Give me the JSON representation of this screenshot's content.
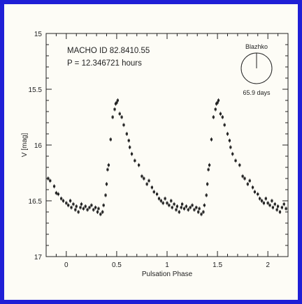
{
  "colors": {
    "border": "#1f1fd6",
    "background": "#fdfcf6",
    "ink": "#222222"
  },
  "chart_data": {
    "type": "scatter",
    "xlabel": "Pulsation Phase",
    "ylabel": "V [mag]",
    "xlim": [
      -0.2,
      2.2
    ],
    "ylim": [
      17,
      15
    ],
    "y_inverted": true,
    "x_ticks": [
      "0",
      "0.5",
      "1",
      "1.5",
      "2"
    ],
    "x_tick_values": [
      0,
      0.5,
      1,
      1.5,
      2
    ],
    "y_ticks": [
      "15",
      "15.5",
      "16",
      "16.5",
      "17"
    ],
    "y_tick_values": [
      15,
      15.5,
      16,
      16.5,
      17
    ],
    "annotations": {
      "line1": "MACHO ID 82.8410.55",
      "line2": "P = 12.346721 hours",
      "inset_title": "Blazhko",
      "inset_caption": "65.9 days"
    },
    "grid": false,
    "series": [
      {
        "points": [
          [
            -0.18,
            16.3
          ],
          [
            -0.16,
            16.32
          ],
          [
            -0.12,
            16.37
          ],
          [
            -0.1,
            16.43
          ],
          [
            -0.08,
            16.44
          ],
          [
            -0.05,
            16.48
          ],
          [
            -0.03,
            16.5
          ],
          [
            0.0,
            16.52
          ],
          [
            0.02,
            16.54
          ],
          [
            0.04,
            16.5
          ],
          [
            0.05,
            16.56
          ],
          [
            0.07,
            16.53
          ],
          [
            0.09,
            16.58
          ],
          [
            0.1,
            16.55
          ],
          [
            0.12,
            16.6
          ],
          [
            0.14,
            16.56
          ],
          [
            0.15,
            16.53
          ],
          [
            0.17,
            16.57
          ],
          [
            0.19,
            16.55
          ],
          [
            0.21,
            16.58
          ],
          [
            0.23,
            16.56
          ],
          [
            0.25,
            16.54
          ],
          [
            0.27,
            16.58
          ],
          [
            0.29,
            16.56
          ],
          [
            0.31,
            16.6
          ],
          [
            0.32,
            16.57
          ],
          [
            0.34,
            16.62
          ],
          [
            0.36,
            16.6
          ],
          [
            0.37,
            16.54
          ],
          [
            0.39,
            16.45
          ],
          [
            0.4,
            16.35
          ],
          [
            0.41,
            16.22
          ],
          [
            0.42,
            16.18
          ],
          [
            0.44,
            15.95
          ],
          [
            0.46,
            15.75
          ],
          [
            0.48,
            15.68
          ],
          [
            0.49,
            15.63
          ],
          [
            0.5,
            15.62
          ],
          [
            0.51,
            15.6
          ],
          [
            0.53,
            15.72
          ],
          [
            0.55,
            15.75
          ],
          [
            0.57,
            15.82
          ],
          [
            0.6,
            15.9
          ],
          [
            0.62,
            15.96
          ],
          [
            0.63,
            16.02
          ],
          [
            0.65,
            16.08
          ],
          [
            0.68,
            16.14
          ],
          [
            0.72,
            16.18
          ],
          [
            0.75,
            16.28
          ],
          [
            0.77,
            16.3
          ],
          [
            0.8,
            16.35
          ],
          [
            0.82,
            16.32
          ],
          [
            0.85,
            16.38
          ],
          [
            0.87,
            16.42
          ],
          [
            0.9,
            16.44
          ],
          [
            0.92,
            16.48
          ],
          [
            0.94,
            16.5
          ],
          [
            0.96,
            16.52
          ],
          [
            0.98,
            16.48
          ],
          [
            1.0,
            16.52
          ],
          [
            1.02,
            16.54
          ],
          [
            1.04,
            16.5
          ],
          [
            1.05,
            16.56
          ],
          [
            1.07,
            16.53
          ],
          [
            1.09,
            16.58
          ],
          [
            1.1,
            16.55
          ],
          [
            1.12,
            16.6
          ],
          [
            1.14,
            16.56
          ],
          [
            1.15,
            16.53
          ],
          [
            1.17,
            16.57
          ],
          [
            1.19,
            16.55
          ],
          [
            1.21,
            16.58
          ],
          [
            1.23,
            16.56
          ],
          [
            1.25,
            16.54
          ],
          [
            1.27,
            16.58
          ],
          [
            1.29,
            16.56
          ],
          [
            1.31,
            16.6
          ],
          [
            1.32,
            16.57
          ],
          [
            1.34,
            16.62
          ],
          [
            1.36,
            16.6
          ],
          [
            1.37,
            16.54
          ],
          [
            1.39,
            16.45
          ],
          [
            1.4,
            16.35
          ],
          [
            1.41,
            16.22
          ],
          [
            1.42,
            16.18
          ],
          [
            1.44,
            15.95
          ],
          [
            1.46,
            15.75
          ],
          [
            1.48,
            15.68
          ],
          [
            1.49,
            15.63
          ],
          [
            1.5,
            15.62
          ],
          [
            1.51,
            15.6
          ],
          [
            1.53,
            15.72
          ],
          [
            1.55,
            15.75
          ],
          [
            1.57,
            15.82
          ],
          [
            1.6,
            15.9
          ],
          [
            1.62,
            15.96
          ],
          [
            1.63,
            16.02
          ],
          [
            1.65,
            16.08
          ],
          [
            1.68,
            16.14
          ],
          [
            1.72,
            16.18
          ],
          [
            1.75,
            16.28
          ],
          [
            1.77,
            16.3
          ],
          [
            1.8,
            16.35
          ],
          [
            1.82,
            16.32
          ],
          [
            1.85,
            16.38
          ],
          [
            1.87,
            16.42
          ],
          [
            1.9,
            16.44
          ],
          [
            1.92,
            16.48
          ],
          [
            1.94,
            16.5
          ],
          [
            1.96,
            16.52
          ],
          [
            1.98,
            16.48
          ],
          [
            2.0,
            16.52
          ],
          [
            2.02,
            16.54
          ],
          [
            2.04,
            16.5
          ],
          [
            2.05,
            16.56
          ],
          [
            2.07,
            16.53
          ],
          [
            2.09,
            16.58
          ],
          [
            2.1,
            16.55
          ],
          [
            2.12,
            16.6
          ],
          [
            2.14,
            16.56
          ],
          [
            2.16,
            16.53
          ],
          [
            2.18,
            16.57
          ]
        ]
      }
    ]
  }
}
